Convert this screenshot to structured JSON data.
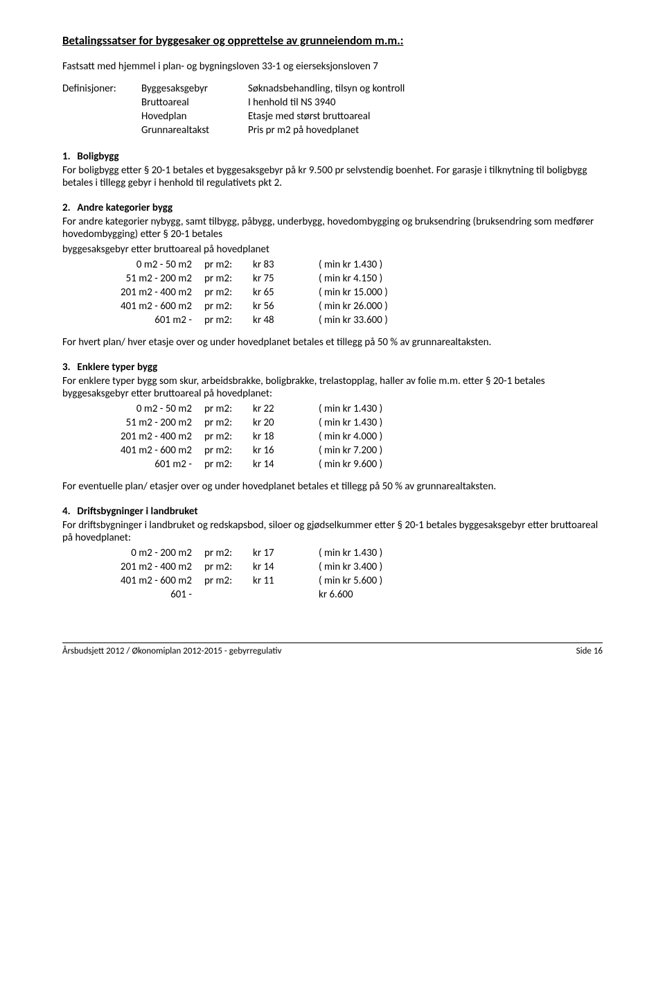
{
  "title": "Betalingssatser for byggesaker og opprettelse av grunneiendom m.m.:",
  "intro": "Fastsatt med hjemmel i plan- og bygningsloven 33-1 og eierseksjonsloven 7",
  "definitions": {
    "lead": "Definisjoner:",
    "rows": [
      {
        "term": "Byggesaksgebyr",
        "def": "Søknadsbehandling, tilsyn og kontroll"
      },
      {
        "term": "Bruttoareal",
        "def": "I henhold til NS 3940"
      },
      {
        "term": "Hovedplan",
        "def": "Etasje med størst bruttoareal"
      },
      {
        "term": "Grunnarealtakst",
        "def": "Pris pr m2 på hovedplanet"
      }
    ]
  },
  "sections": [
    {
      "num": "1.",
      "title": "Boligbygg",
      "body": "For boligbygg etter § 20-1 betales et byggesaksgebyr på kr 9.500 pr selvstendig boenhet. For garasje i tilknytning til boligbygg betales i tillegg gebyr i henhold til regulativets pkt 2."
    },
    {
      "num": "2.",
      "title": "Andre kategorier bygg",
      "body": "For andre kategorier nybygg, samt tilbygg, påbygg, underbygg, hovedombygging og bruksendring (bruksendring som medfører hovedombygging) etter § 20-1 betales",
      "body2": "byggesaksgebyr etter bruttoareal på hovedplanet",
      "rates": [
        {
          "range": "0 m2 -   50 m2",
          "per": "pr m2:",
          "price": "kr 83",
          "min": "( min kr   1.430 )"
        },
        {
          "range": "51 m2 - 200 m2",
          "per": "pr m2:",
          "price": "kr 75",
          "min": "( min kr   4.150 )"
        },
        {
          "range": "201 m2 - 400 m2",
          "per": "pr m2:",
          "price": "kr 65",
          "min": "( min kr 15.000 )"
        },
        {
          "range": "401 m2 - 600 m2",
          "per": "pr m2:",
          "price": "kr 56",
          "min": "( min kr 26.000 )"
        },
        {
          "range": "601 m2 -",
          "per": "pr m2:",
          "price": "kr 48",
          "min": "( min kr 33.600 )"
        }
      ],
      "after": "For hvert plan/ hver etasje over og under hovedplanet betales et tillegg på 50 % av grunnarealtaksten."
    },
    {
      "num": "3.",
      "title": "Enklere typer bygg",
      "body": "For enklere typer bygg som skur, arbeidsbrakke, boligbrakke, trelastopplag, haller av folie m.m. etter § 20-1 betales byggesaksgebyr etter bruttoareal på hovedplanet:",
      "rates": [
        {
          "range": "0 m2 -   50 m2",
          "per": "pr m2:",
          "price": "kr 22",
          "min": "( min kr   1.430 )"
        },
        {
          "range": "51 m2 - 200 m2",
          "per": "pr m2:",
          "price": "kr 20",
          "min": "( min kr   1.430 )"
        },
        {
          "range": "201 m2 - 400 m2",
          "per": "pr m2:",
          "price": "kr 18",
          "min": "( min kr   4.000 )"
        },
        {
          "range": "401 m2 - 600 m2",
          "per": "pr m2:",
          "price": "kr 16",
          "min": "( min kr   7.200 )"
        },
        {
          "range": "601 m2 -",
          "per": "pr m2:",
          "price": "kr 14",
          "min": "( min kr   9.600 )"
        }
      ],
      "after": "For eventuelle plan/ etasjer over og under hovedplanet betales et tillegg på 50 % av grunnarealtaksten."
    },
    {
      "num": "4.",
      "title": "Driftsbygninger i landbruket",
      "body": "For driftsbygninger i landbruket og redskapsbod, siloer og gjødselkummer etter § 20-1 betales byggesaksgebyr etter bruttoareal på hovedplanet:",
      "rates": [
        {
          "range": "0 m2 - 200 m2",
          "per": "pr m2:",
          "price": "kr 17",
          "min": "( min kr   1.430 )"
        },
        {
          "range": "201 m2 - 400 m2",
          "per": "pr m2:",
          "price": "kr 14",
          "min": "( min kr   3.400 )"
        },
        {
          "range": "401 m2 - 600 m2",
          "per": "pr m2:",
          "price": "kr 11",
          "min": "( min kr   5.600 )"
        },
        {
          "range": "601 -",
          "per": "",
          "price": "",
          "min": "kr   6.600"
        }
      ]
    }
  ],
  "footer": {
    "left": "Årsbudsjett 2012 / Økonomiplan 2012-2015 - gebyrregulativ",
    "right": "Side 16"
  }
}
